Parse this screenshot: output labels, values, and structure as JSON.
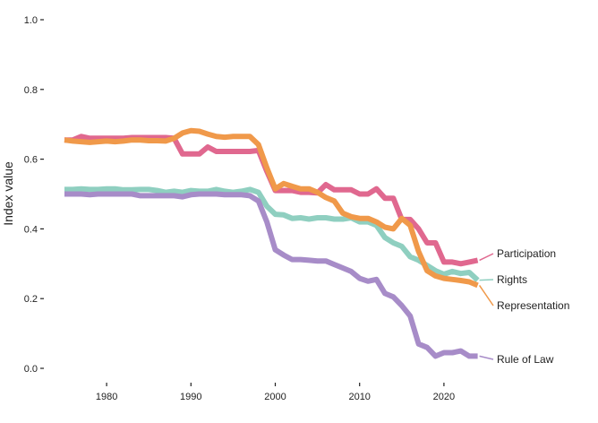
{
  "chart_data": {
    "type": "line",
    "title": "",
    "xlabel": "",
    "ylabel": "Index value",
    "xlim": [
      1975,
      2024
    ],
    "ylim": [
      0,
      1
    ],
    "x_ticks": [
      1980,
      1990,
      2000,
      2010,
      2020
    ],
    "y_ticks": [
      0.0,
      0.2,
      0.4,
      0.6,
      0.8,
      1.0
    ],
    "y_tick_labels": [
      "0.0",
      "0.2",
      "0.4",
      "0.6",
      "0.8",
      "1.0"
    ],
    "grid": false,
    "legend": "direct labels at right end of lines",
    "x": [
      1975,
      1976,
      1977,
      1978,
      1979,
      1980,
      1981,
      1982,
      1983,
      1984,
      1985,
      1986,
      1987,
      1988,
      1989,
      1990,
      1991,
      1992,
      1993,
      1994,
      1995,
      1996,
      1997,
      1998,
      1999,
      2000,
      2001,
      2002,
      2003,
      2004,
      2005,
      2006,
      2007,
      2008,
      2009,
      2010,
      2011,
      2012,
      2013,
      2014,
      2015,
      2016,
      2017,
      2018,
      2019,
      2020,
      2021,
      2022,
      2023,
      2024
    ],
    "series": [
      {
        "name": "Participation",
        "color": "#e0688f",
        "values": [
          0.655,
          0.655,
          0.665,
          0.66,
          0.66,
          0.66,
          0.66,
          0.66,
          0.662,
          0.662,
          0.662,
          0.662,
          0.662,
          0.66,
          0.615,
          0.615,
          0.615,
          0.635,
          0.622,
          0.622,
          0.622,
          0.622,
          0.622,
          0.625,
          0.565,
          0.51,
          0.51,
          0.51,
          0.505,
          0.505,
          0.503,
          0.527,
          0.512,
          0.512,
          0.512,
          0.5,
          0.5,
          0.515,
          0.488,
          0.488,
          0.427,
          0.427,
          0.4,
          0.36,
          0.36,
          0.305,
          0.305,
          0.3,
          0.305,
          0.31
        ]
      },
      {
        "name": "Rights",
        "color": "#8fcfc0",
        "values": [
          0.513,
          0.513,
          0.515,
          0.513,
          0.513,
          0.515,
          0.515,
          0.512,
          0.512,
          0.513,
          0.513,
          0.51,
          0.505,
          0.508,
          0.505,
          0.51,
          0.508,
          0.508,
          0.513,
          0.508,
          0.505,
          0.508,
          0.513,
          0.505,
          0.465,
          0.442,
          0.44,
          0.43,
          0.432,
          0.428,
          0.432,
          0.432,
          0.428,
          0.428,
          0.432,
          0.42,
          0.42,
          0.41,
          0.375,
          0.36,
          0.35,
          0.32,
          0.31,
          0.295,
          0.28,
          0.27,
          0.278,
          0.272,
          0.275,
          0.253
        ]
      },
      {
        "name": "Representation",
        "color": "#f0994a",
        "values": [
          0.655,
          0.652,
          0.65,
          0.648,
          0.65,
          0.652,
          0.65,
          0.652,
          0.655,
          0.655,
          0.653,
          0.653,
          0.652,
          0.66,
          0.675,
          0.682,
          0.68,
          0.672,
          0.665,
          0.663,
          0.665,
          0.665,
          0.665,
          0.642,
          0.575,
          0.515,
          0.53,
          0.522,
          0.515,
          0.515,
          0.505,
          0.49,
          0.48,
          0.445,
          0.435,
          0.43,
          0.43,
          0.42,
          0.405,
          0.4,
          0.43,
          0.41,
          0.335,
          0.28,
          0.265,
          0.258,
          0.255,
          0.252,
          0.248,
          0.238
        ]
      },
      {
        "name": "Rule of Law",
        "color": "#a78cc8",
        "values": [
          0.5,
          0.5,
          0.5,
          0.498,
          0.5,
          0.5,
          0.5,
          0.5,
          0.5,
          0.495,
          0.495,
          0.495,
          0.495,
          0.495,
          0.492,
          0.498,
          0.5,
          0.5,
          0.5,
          0.498,
          0.498,
          0.498,
          0.495,
          0.48,
          0.42,
          0.34,
          0.325,
          0.312,
          0.312,
          0.31,
          0.308,
          0.308,
          0.298,
          0.288,
          0.278,
          0.258,
          0.25,
          0.255,
          0.215,
          0.205,
          0.18,
          0.15,
          0.07,
          0.06,
          0.035,
          0.045,
          0.045,
          0.05,
          0.035,
          0.035
        ]
      }
    ]
  }
}
